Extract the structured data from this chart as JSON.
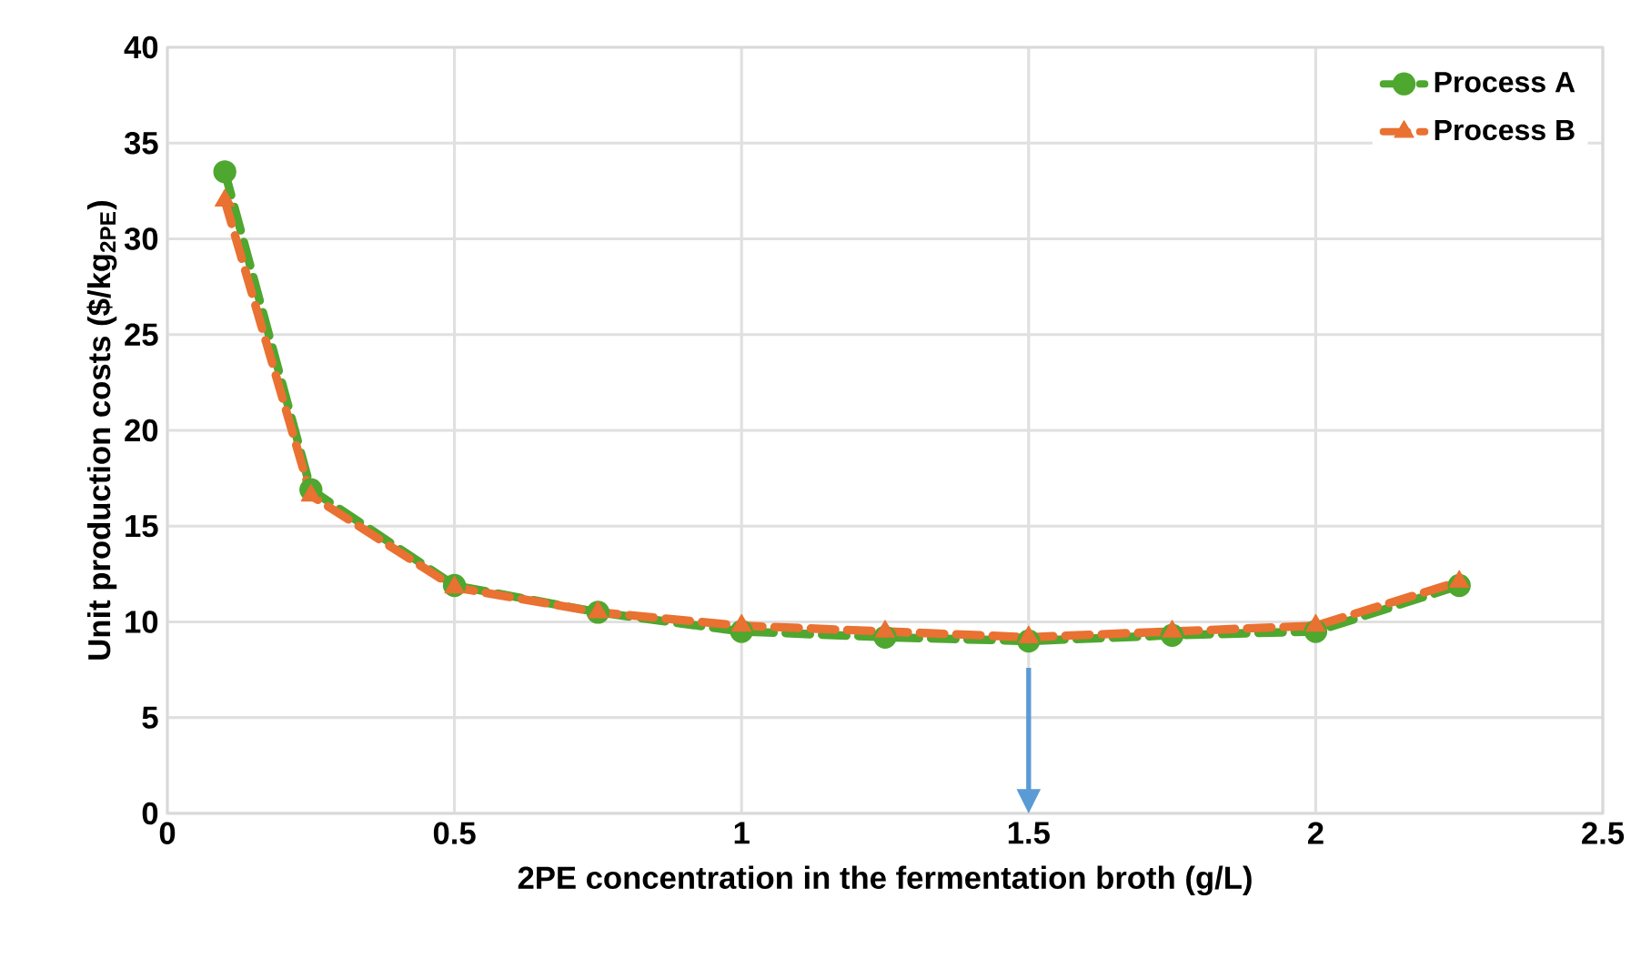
{
  "chart_data": {
    "type": "line",
    "xlabel": "2PE concentration in the fermentation broth (g/L)",
    "ylabel": "Unit production costs ($/kg$_{2PE}$)",
    "x": [
      0.1,
      0.25,
      0.5,
      0.75,
      1.0,
      1.25,
      1.5,
      1.75,
      2.0,
      2.25
    ],
    "series": [
      {
        "name": "Process A",
        "color": "#4ea72e",
        "marker": "circle",
        "line_style": "dashed",
        "values": [
          33.5,
          16.9,
          11.9,
          10.5,
          9.5,
          9.2,
          9.0,
          9.3,
          9.5,
          11.9
        ]
      },
      {
        "name": "Process B",
        "color": "#e97132",
        "marker": "triangle",
        "line_style": "dashed",
        "values": [
          32.0,
          16.6,
          11.8,
          10.5,
          9.8,
          9.5,
          9.2,
          9.5,
          9.8,
          12.1
        ]
      }
    ],
    "xlim": [
      0,
      2.5
    ],
    "xticks": [
      0,
      0.5,
      1,
      1.5,
      2,
      2.5
    ],
    "ylim": [
      0,
      40
    ],
    "yticks": [
      0,
      5,
      10,
      15,
      20,
      25,
      30,
      35,
      40
    ],
    "grid": true,
    "legend": "top right",
    "ref_lines": [
      {
        "axis": "x",
        "value": 1.5,
        "color": "#5b9bd5",
        "line_style": "solid"
      }
    ]
  }
}
